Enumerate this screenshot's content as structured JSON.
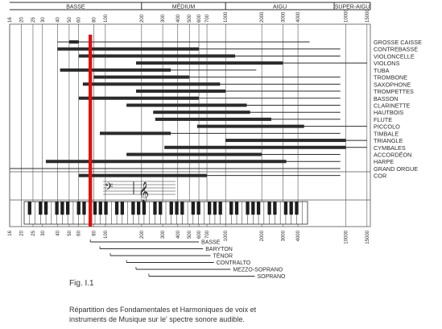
{
  "chart_data": {
    "type": "range",
    "scale": "log",
    "x_ticks": [
      16,
      20,
      25,
      30,
      40,
      50,
      60,
      80,
      100,
      200,
      300,
      400,
      500,
      600,
      700,
      1000,
      2000,
      3000,
      4000,
      10000,
      15000
    ],
    "registers": [
      {
        "label": "BASSE",
        "from": 16,
        "to": 200
      },
      {
        "label": "MÉDIUM",
        "from": 200,
        "to": 1000
      },
      {
        "label": "AIGU",
        "from": 1000,
        "to": 8000
      },
      {
        "label": "SUPER-AIGU",
        "from": 8000,
        "to": 16000
      }
    ],
    "highlight_frequency": 75,
    "instruments": [
      {
        "name": "GROSSE CAISSE",
        "thin_range": [
          40,
          5000
        ],
        "thick_range": [
          50,
          60
        ]
      },
      {
        "name": "CONTREBASSE",
        "thin_range": [
          40,
          9000
        ],
        "thick_range": [
          40,
          600
        ]
      },
      {
        "name": "VIOLONCELLE",
        "thin_range": [
          60,
          9000
        ],
        "thick_range": [
          60,
          1200
        ]
      },
      {
        "name": "VIOLONS",
        "thin_range": [
          180,
          15000
        ],
        "thick_range": [
          180,
          3000
        ]
      },
      {
        "name": "TUBA",
        "thin_range": [
          42,
          1800
        ],
        "thick_range": [
          42,
          350
        ]
      },
      {
        "name": "TROMBONE",
        "thin_range": [
          80,
          9000
        ],
        "thick_range": [
          80,
          500
        ]
      },
      {
        "name": "SAXOPHONE",
        "thin_range": [
          65,
          9000
        ],
        "thick_range": [
          65,
          900
        ]
      },
      {
        "name": "TROMPETTES",
        "thin_range": [
          180,
          9000
        ],
        "thick_range": [
          180,
          1000
        ]
      },
      {
        "name": "BASSON",
        "thin_range": [
          60,
          9000
        ],
        "thick_range": [
          60,
          600
        ]
      },
      {
        "name": "CLARINETTE",
        "thin_range": [
          150,
          9000
        ],
        "thick_range": [
          150,
          1500
        ]
      },
      {
        "name": "HAUTBOIS",
        "thin_range": [
          250,
          9000
        ],
        "thick_range": [
          250,
          1600
        ]
      },
      {
        "name": "FLUTE",
        "thin_range": [
          260,
          9000
        ],
        "thick_range": [
          260,
          2400
        ]
      },
      {
        "name": "PICCOLO",
        "thin_range": [
          580,
          15000
        ],
        "thick_range": [
          580,
          4500
        ]
      },
      {
        "name": "TIMBALE",
        "thin_range": [
          90,
          9000
        ],
        "thick_range": [
          90,
          350
        ]
      },
      {
        "name": "TRIANGLE",
        "thin_range": [
          1000,
          15000
        ],
        "thick_range": [
          1000,
          10000
        ]
      },
      {
        "name": "CYMBALES",
        "thin_range": [
          310,
          15000
        ],
        "thick_range": [
          310,
          10000
        ]
      },
      {
        "name": "ACCORDÉON",
        "thin_range": [
          150,
          9000
        ],
        "thick_range": [
          150,
          2000
        ]
      },
      {
        "name": "HARPE",
        "thin_range": [
          32,
          9000
        ],
        "thick_range": [
          32,
          3200
        ]
      },
      {
        "name": "GRAND ORGUE",
        "thin_range": [
          16,
          9000
        ],
        "thick_range": [
          16,
          16
        ]
      },
      {
        "name": "COR",
        "thin_range": [
          60,
          9000
        ],
        "thick_range": [
          60,
          700
        ]
      }
    ],
    "voices": [
      {
        "name": "BASSE",
        "range": [
          75,
          600
        ]
      },
      {
        "name": "BARYTON",
        "range": [
          90,
          650
        ]
      },
      {
        "name": "TÉNOR",
        "range": [
          110,
          750
        ]
      },
      {
        "name": "CONTRALTO",
        "range": [
          150,
          800
        ]
      },
      {
        "name": "MEZZO-SOPRANO",
        "range": [
          180,
          1100
        ]
      },
      {
        "name": "SOPRANO",
        "range": [
          230,
          1750
        ]
      }
    ]
  },
  "caption": {
    "title": "Fig. I.1",
    "line1": "Répartition des Fondamentales et Harmoniques de voix et",
    "line2": "instruments de Musique sur le' spectre sonore audible."
  },
  "colors": {
    "ink": "#2b2b2b",
    "grid": "#555555",
    "highlight": "#e01010",
    "piano_white": "#ffffff",
    "piano_black": "#1e1e1e"
  }
}
